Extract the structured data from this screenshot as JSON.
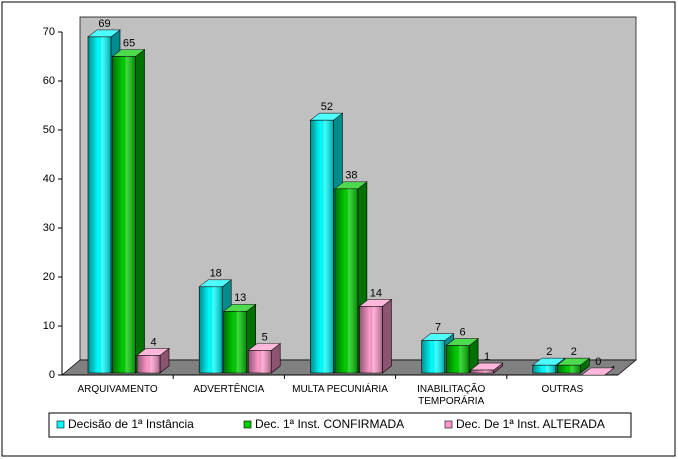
{
  "chart_data": {
    "type": "bar3d",
    "categories": [
      "ARQUIVAMENTO",
      "ADVERTÊNCIA",
      "MULTA PECUNIÁRIA",
      "INABILITAÇÃO TEMPORÁRIA",
      "OUTRAS"
    ],
    "series": [
      {
        "name": "Decisão de 1ª Instância",
        "color": "#00ffff",
        "values": [
          69,
          18,
          52,
          7,
          2
        ]
      },
      {
        "name": "Dec. 1ª Inst. CONFIRMADA",
        "color": "#00cc00",
        "values": [
          65,
          13,
          38,
          6,
          2
        ]
      },
      {
        "name": "Dec. De 1ª Inst. ALTERADA",
        "color": "#ff99cc",
        "values": [
          4,
          5,
          14,
          1,
          0
        ]
      }
    ],
    "ylim": [
      0,
      70
    ],
    "yticks": [
      0,
      10,
      20,
      30,
      40,
      50,
      60,
      70
    ],
    "legend": "bottom"
  }
}
